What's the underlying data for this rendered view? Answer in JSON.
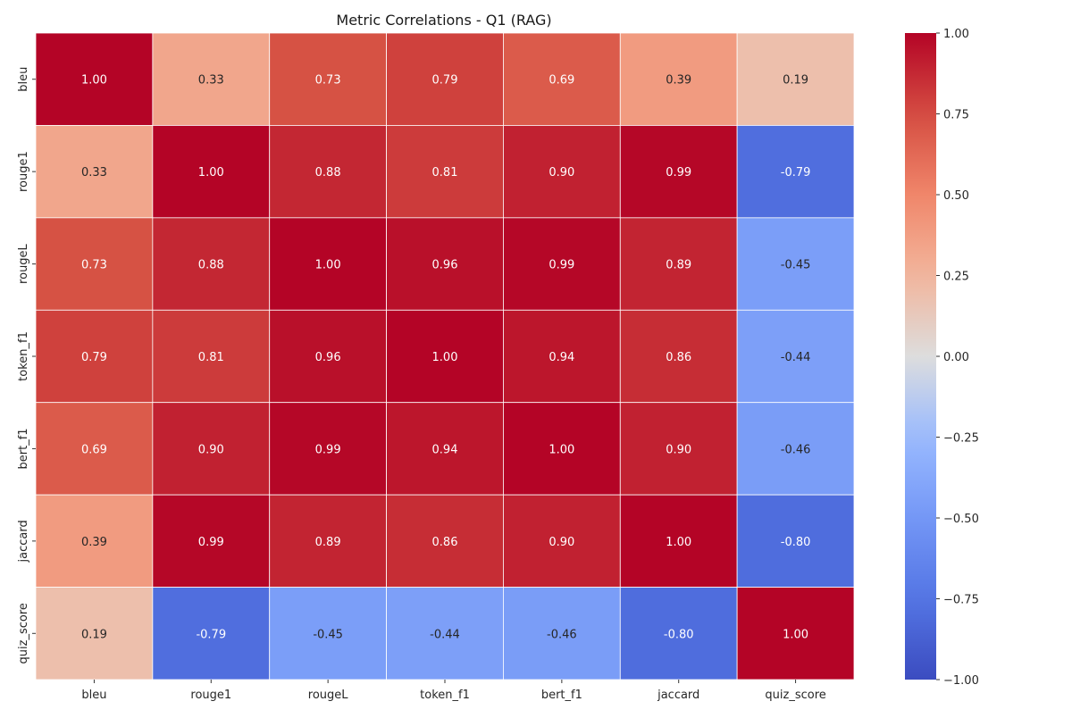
{
  "chart_data": {
    "type": "heatmap",
    "title": "Metric Correlations - Q1 (RAG)",
    "xlabel": "",
    "ylabel": "",
    "rows": [
      "bleu",
      "rouge1",
      "rougeL",
      "token_f1",
      "bert_f1",
      "jaccard",
      "quiz_score"
    ],
    "columns": [
      "bleu",
      "rouge1",
      "rougeL",
      "token_f1",
      "bert_f1",
      "jaccard",
      "quiz_score"
    ],
    "values": [
      [
        1.0,
        0.33,
        0.73,
        0.79,
        0.69,
        0.39,
        0.19
      ],
      [
        0.33,
        1.0,
        0.88,
        0.81,
        0.9,
        0.99,
        -0.79
      ],
      [
        0.73,
        0.88,
        1.0,
        0.96,
        0.99,
        0.89,
        -0.45
      ],
      [
        0.79,
        0.81,
        0.96,
        1.0,
        0.94,
        0.86,
        -0.44
      ],
      [
        0.69,
        0.9,
        0.99,
        0.94,
        1.0,
        0.9,
        -0.46
      ],
      [
        0.39,
        0.99,
        0.89,
        0.86,
        0.9,
        1.0,
        -0.8
      ],
      [
        0.19,
        -0.79,
        -0.45,
        -0.44,
        -0.46,
        -0.8,
        1.0
      ]
    ],
    "value_format": "2 decimals",
    "colormap": "coolwarm",
    "vmin": -1.0,
    "vmax": 1.0,
    "colorbar": {
      "ticks": [
        1.0,
        0.75,
        0.5,
        0.25,
        0.0,
        -0.25,
        -0.5,
        -0.75,
        -1.0
      ],
      "tick_labels": [
        "1.00",
        "0.75",
        "0.50",
        "0.25",
        "0.00",
        "−0.25",
        "−0.50",
        "−0.75",
        "−1.00"
      ],
      "placement": "right"
    },
    "grid": true,
    "cell_border_color": "#ffffff"
  }
}
